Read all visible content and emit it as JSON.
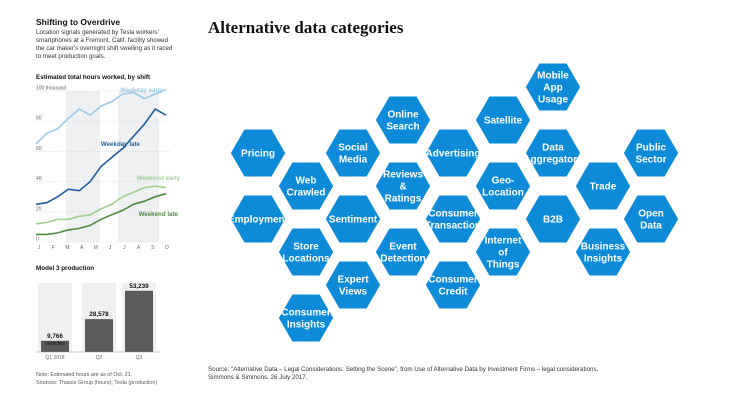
{
  "wsj": {
    "title": "Shifting to Overdrive",
    "description": "Location signals generated by Tesla workers' smartphones at a Fremont, Calif. facility showed the car maker's overnight shift swelling as it raced to meet production goals.",
    "line_chart_subtitle": "Estimated total hours worked, by shift",
    "bar_chart_subtitle": "Model 3 production",
    "note": "Note: Estimated hours are as of Oct. 21.",
    "sources": "Sources: Thasos Group (hours); Tesla (production)"
  },
  "chart_data": [
    {
      "type": "line",
      "title": "Estimated total hours worked, by shift",
      "y_unit_label": "100 thousand",
      "ylim": [
        0,
        100
      ],
      "y_ticks": [
        "100 thousand",
        "80",
        "60",
        "40",
        "20",
        "0"
      ],
      "x_ticks": [
        "J",
        "F",
        "M",
        "A",
        "M",
        "J",
        "J",
        "A",
        "S",
        "O"
      ],
      "series": [
        {
          "name": "Weekday early",
          "color": "#9dc9ea",
          "values": [
            65,
            72,
            75,
            82,
            88,
            84,
            90,
            93,
            98,
            99,
            95,
            98,
            101
          ]
        },
        {
          "name": "Weekday late",
          "color": "#1f5fa0",
          "values": [
            25,
            26,
            30,
            35,
            34,
            40,
            50,
            56,
            62,
            70,
            78,
            88,
            84
          ]
        },
        {
          "name": "Weekend early",
          "color": "#9fd08f",
          "values": [
            12,
            13,
            15,
            15,
            17,
            18,
            22,
            25,
            30,
            33,
            36,
            37,
            36
          ]
        },
        {
          "name": "Weekend late",
          "color": "#4e8a3e",
          "values": [
            5,
            5,
            6,
            8,
            9,
            11,
            15,
            18,
            21,
            25,
            27,
            30,
            32
          ]
        }
      ]
    },
    {
      "type": "bar",
      "title": "Model 3 production",
      "categories": [
        "Q1 2018",
        "Q2",
        "Q3"
      ],
      "values": [
        9766,
        28578,
        53239
      ],
      "data_labels": [
        "9,766",
        "28,578",
        "53,239"
      ],
      "first_bar_unit": "vehicles",
      "ylim": [
        0,
        60000
      ]
    }
  ],
  "main": {
    "title": "Alternative data categories",
    "source_text": "Source: \"Alternative Data – Legal Considerations: Setting the Scene\", from Use of Alternative Data by Investment Firms – legal considerations, Simmons & Simmons, 26 July 2017.",
    "hex_color": "#0d8bd9",
    "hexes": [
      {
        "name": "pricing",
        "lines": [
          "Pricing"
        ]
      },
      {
        "name": "employment",
        "lines": [
          "Employment"
        ]
      },
      {
        "name": "web-crawled",
        "lines": [
          "Web",
          "Crawled"
        ]
      },
      {
        "name": "store-locations",
        "lines": [
          "Store",
          "Locations"
        ]
      },
      {
        "name": "consumer-insights",
        "lines": [
          "Consumer",
          "Insights"
        ]
      },
      {
        "name": "social-media",
        "lines": [
          "Social",
          "Media"
        ]
      },
      {
        "name": "sentiment",
        "lines": [
          "Sentiment"
        ]
      },
      {
        "name": "expert-views",
        "lines": [
          "Expert",
          "Views"
        ]
      },
      {
        "name": "online-search",
        "lines": [
          "Online",
          "Search"
        ]
      },
      {
        "name": "reviews-ratings",
        "lines": [
          "Reviews",
          "&",
          "Ratings"
        ]
      },
      {
        "name": "event-detection",
        "lines": [
          "Event",
          "Detection"
        ]
      },
      {
        "name": "advertising",
        "lines": [
          "Advertising"
        ]
      },
      {
        "name": "consumer-transaction",
        "lines": [
          "Consumer",
          "Transaction"
        ]
      },
      {
        "name": "consumer-credit",
        "lines": [
          "Consumer",
          "Credit"
        ]
      },
      {
        "name": "satellite",
        "lines": [
          "Satellite"
        ]
      },
      {
        "name": "geo-location",
        "lines": [
          "Geo-",
          "Location"
        ]
      },
      {
        "name": "internet-of-things",
        "lines": [
          "Internet",
          "of",
          "Things"
        ]
      },
      {
        "name": "mobile-app-usage",
        "lines": [
          "Mobile",
          "App",
          "Usage"
        ]
      },
      {
        "name": "data-aggregators",
        "lines": [
          "Data",
          "Aggregators"
        ]
      },
      {
        "name": "b2b",
        "lines": [
          "B2B"
        ]
      },
      {
        "name": "trade",
        "lines": [
          "Trade"
        ]
      },
      {
        "name": "business-insights",
        "lines": [
          "Business",
          "Insights"
        ]
      },
      {
        "name": "public-sector",
        "lines": [
          "Public",
          "Sector"
        ]
      },
      {
        "name": "open-data",
        "lines": [
          "Open",
          "Data"
        ]
      }
    ]
  }
}
